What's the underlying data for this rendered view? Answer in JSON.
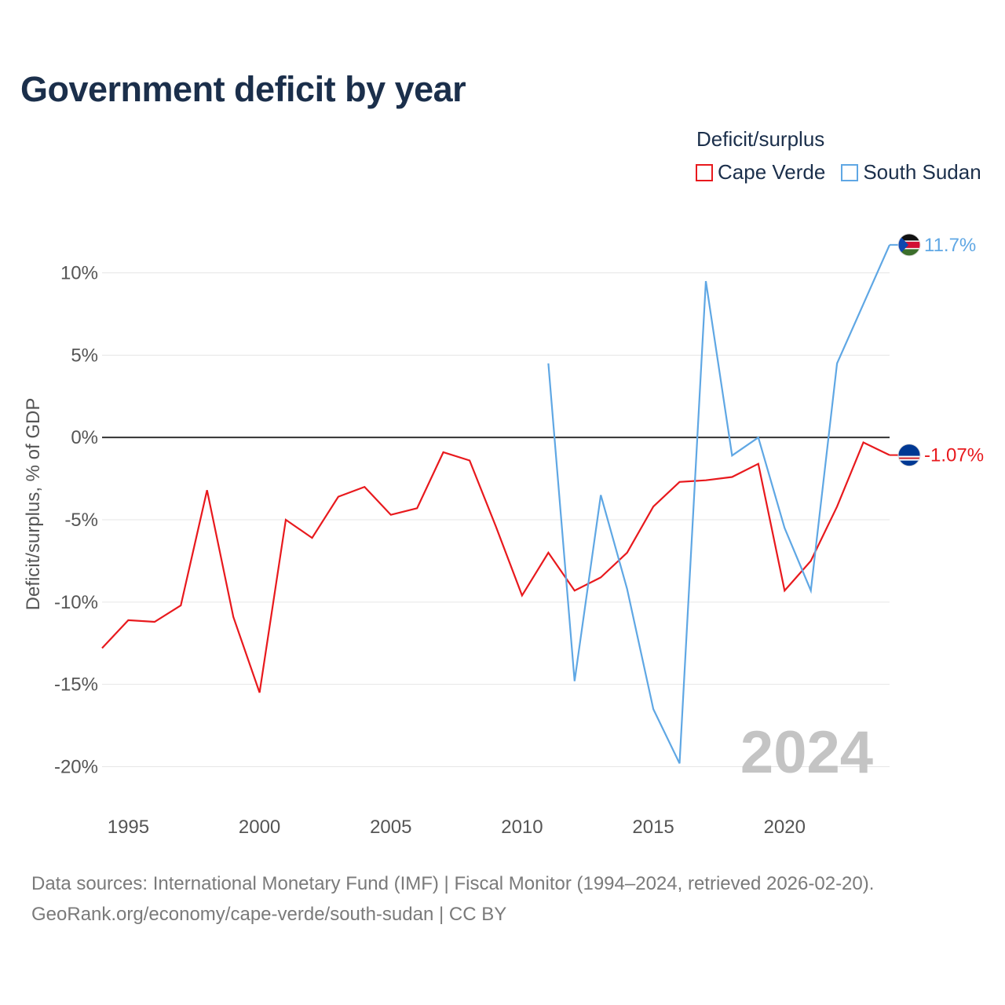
{
  "title": "Government deficit by year",
  "legend": {
    "title": "Deficit/surplus",
    "items": [
      {
        "name": "Cape Verde",
        "color": "#e8191d"
      },
      {
        "name": "South Sudan",
        "color": "#5fa7e4"
      }
    ]
  },
  "source": {
    "line1": "Data sources: International Monetary Fund (IMF) | Fiscal Monitor (1994–2024, retrieved 2026-02-20).",
    "line2": "GeoRank.org/economy/cape-verde/south-sudan | CC BY"
  },
  "chart_data": {
    "type": "line",
    "title": "Government deficit by year",
    "xlabel": "",
    "ylabel": "Deficit/surplus, % of GDP",
    "xlim": [
      1994,
      2024
    ],
    "ylim": [
      -20,
      10
    ],
    "x_ticks": [
      1995,
      2000,
      2005,
      2010,
      2015,
      2020
    ],
    "y_ticks": [
      10,
      5,
      0,
      -5,
      -10,
      -15,
      -20
    ],
    "y_tick_labels": [
      "10%",
      "5%",
      "0%",
      "-5%",
      "-10%",
      "-15%",
      "-20%"
    ],
    "grid": true,
    "year_watermark": "2024",
    "series": [
      {
        "name": "Cape Verde",
        "color": "#e8191d",
        "end_label": "-1.07%",
        "x": [
          1994,
          1995,
          1996,
          1997,
          1998,
          1999,
          2000,
          2001,
          2002,
          2003,
          2004,
          2005,
          2006,
          2007,
          2008,
          2009,
          2010,
          2011,
          2012,
          2013,
          2014,
          2015,
          2016,
          2017,
          2018,
          2019,
          2020,
          2021,
          2022,
          2023,
          2024
        ],
        "y": [
          -12.8,
          -11.1,
          -11.2,
          -10.2,
          -3.2,
          -10.9,
          -15.5,
          -5.0,
          -6.1,
          -3.6,
          -3.0,
          -4.7,
          -4.3,
          -0.9,
          -1.4,
          -5.4,
          -9.6,
          -7.0,
          -9.3,
          -8.5,
          -7.0,
          -4.2,
          -2.7,
          -2.6,
          -2.4,
          -1.6,
          -9.3,
          -7.5,
          -4.2,
          -0.3,
          -1.07
        ]
      },
      {
        "name": "South Sudan",
        "color": "#5fa7e4",
        "end_label": "11.7%",
        "x": [
          2011,
          2012,
          2013,
          2014,
          2015,
          2016,
          2017,
          2018,
          2019,
          2020,
          2021,
          2022,
          2023,
          2024
        ],
        "y": [
          4.5,
          -14.8,
          -3.5,
          -9.2,
          -16.5,
          -19.8,
          9.5,
          -1.1,
          0.0,
          -5.5,
          -9.3,
          4.5,
          8.1,
          11.7
        ]
      }
    ]
  }
}
